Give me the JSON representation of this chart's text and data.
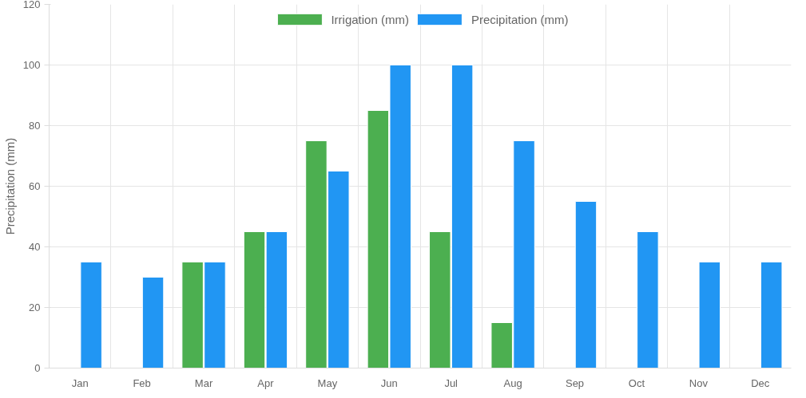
{
  "chart_data": {
    "type": "bar",
    "ylabel": "Precipitation (mm)",
    "categories": [
      "Jan",
      "Feb",
      "Mar",
      "Apr",
      "May",
      "Jun",
      "Jul",
      "Aug",
      "Sep",
      "Oct",
      "Nov",
      "Dec"
    ],
    "series": [
      {
        "name": "Irrigation (mm)",
        "color": "#4caf50",
        "values": [
          null,
          null,
          35,
          45,
          75,
          85,
          45,
          15,
          null,
          null,
          null,
          null
        ]
      },
      {
        "name": "Precipitation (mm)",
        "color": "#2196f3",
        "values": [
          35,
          30,
          35,
          45,
          65,
          100,
          100,
          75,
          55,
          45,
          35,
          35
        ]
      }
    ],
    "ylim": [
      0,
      120
    ],
    "yticks": [
      0,
      20,
      40,
      60,
      80,
      100,
      120
    ],
    "grid": true,
    "legend": "top"
  }
}
